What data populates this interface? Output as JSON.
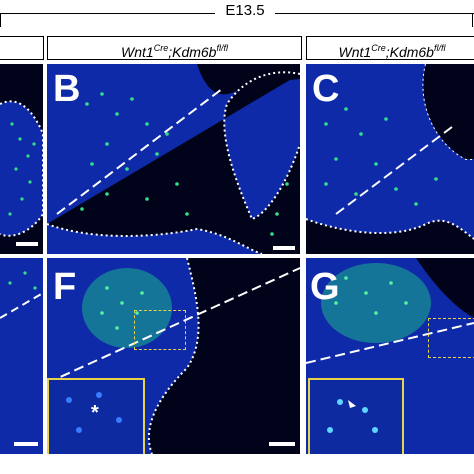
{
  "stage_label": "E13.5",
  "headers": [
    {
      "genotype": "Wnt1",
      "cre": "Cre",
      "sep": ";",
      "gene": "Kdm6b",
      "allele": "fl/fl"
    },
    {
      "genotype": "Wnt1",
      "cre": "Cre",
      "sep": ";",
      "gene": "Kdm6b",
      "allele": "fl/fl"
    }
  ],
  "panels": {
    "B": {
      "label": "B"
    },
    "C": {
      "label": "C"
    },
    "F": {
      "label": "F",
      "inset_marker": "*"
    },
    "G": {
      "label": "G"
    }
  },
  "colors": {
    "nuclei": "#1a3fd6",
    "marker": "#33e08a",
    "background": "#01031a",
    "inset_border": "#e6d34a",
    "outline": "#ffffff"
  }
}
